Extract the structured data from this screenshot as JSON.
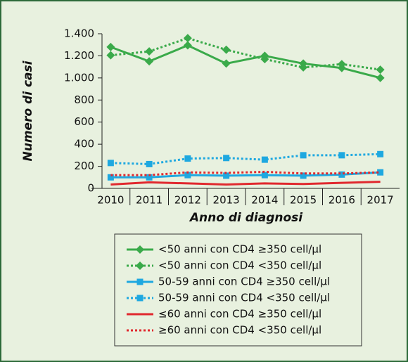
{
  "chart_data": {
    "type": "line",
    "y_label": "Numero di casi",
    "x_label": "Anno di diagnosi",
    "categories": [
      "2010",
      "2011",
      "2012",
      "2013",
      "2014",
      "2015",
      "2016",
      "2017"
    ],
    "ylim": [
      0,
      1400
    ],
    "yticks": [
      0,
      200,
      400,
      600,
      800,
      {
        "value": 1000,
        "label": "1.000"
      },
      {
        "value": 1200,
        "label": "1.200"
      },
      {
        "value": 1400,
        "label": "1.400"
      }
    ],
    "series": [
      {
        "name": "<50 anni con CD4 ≥350 cell/µl",
        "color": "#3aaa4a",
        "dashed": false,
        "marker": "diamond",
        "values": [
          1280,
          1150,
          1295,
          1130,
          1200,
          1130,
          1090,
          1000
        ]
      },
      {
        "name": "<50 anni con CD4 <350 cell/µl",
        "color": "#3aaa4a",
        "dashed": true,
        "marker": "diamond",
        "values": [
          1205,
          1240,
          1360,
          1255,
          1170,
          1095,
          1125,
          1075
        ]
      },
      {
        "name": "50-59 anni con CD4 ≥350 cell/µl",
        "color": "#1ea8e0",
        "dashed": false,
        "marker": "square",
        "values": [
          100,
          100,
          120,
          115,
          120,
          115,
          125,
          145
        ]
      },
      {
        "name": "50-59 anni con CD4 <350 cell/µl",
        "color": "#1ea8e0",
        "dashed": true,
        "marker": "square",
        "values": [
          230,
          220,
          270,
          275,
          260,
          300,
          300,
          310
        ]
      },
      {
        "name": "≤60 anni con CD4 ≥350 cell/µl",
        "color": "#e0282e",
        "dashed": false,
        "marker": null,
        "values": [
          35,
          55,
          45,
          35,
          45,
          40,
          50,
          60
        ]
      },
      {
        "name": "≥60 anni con CD4 <350 cell/µl",
        "color": "#e0282e",
        "dashed": true,
        "marker": null,
        "values": [
          120,
          120,
          145,
          140,
          150,
          135,
          135,
          145
        ]
      }
    ]
  }
}
